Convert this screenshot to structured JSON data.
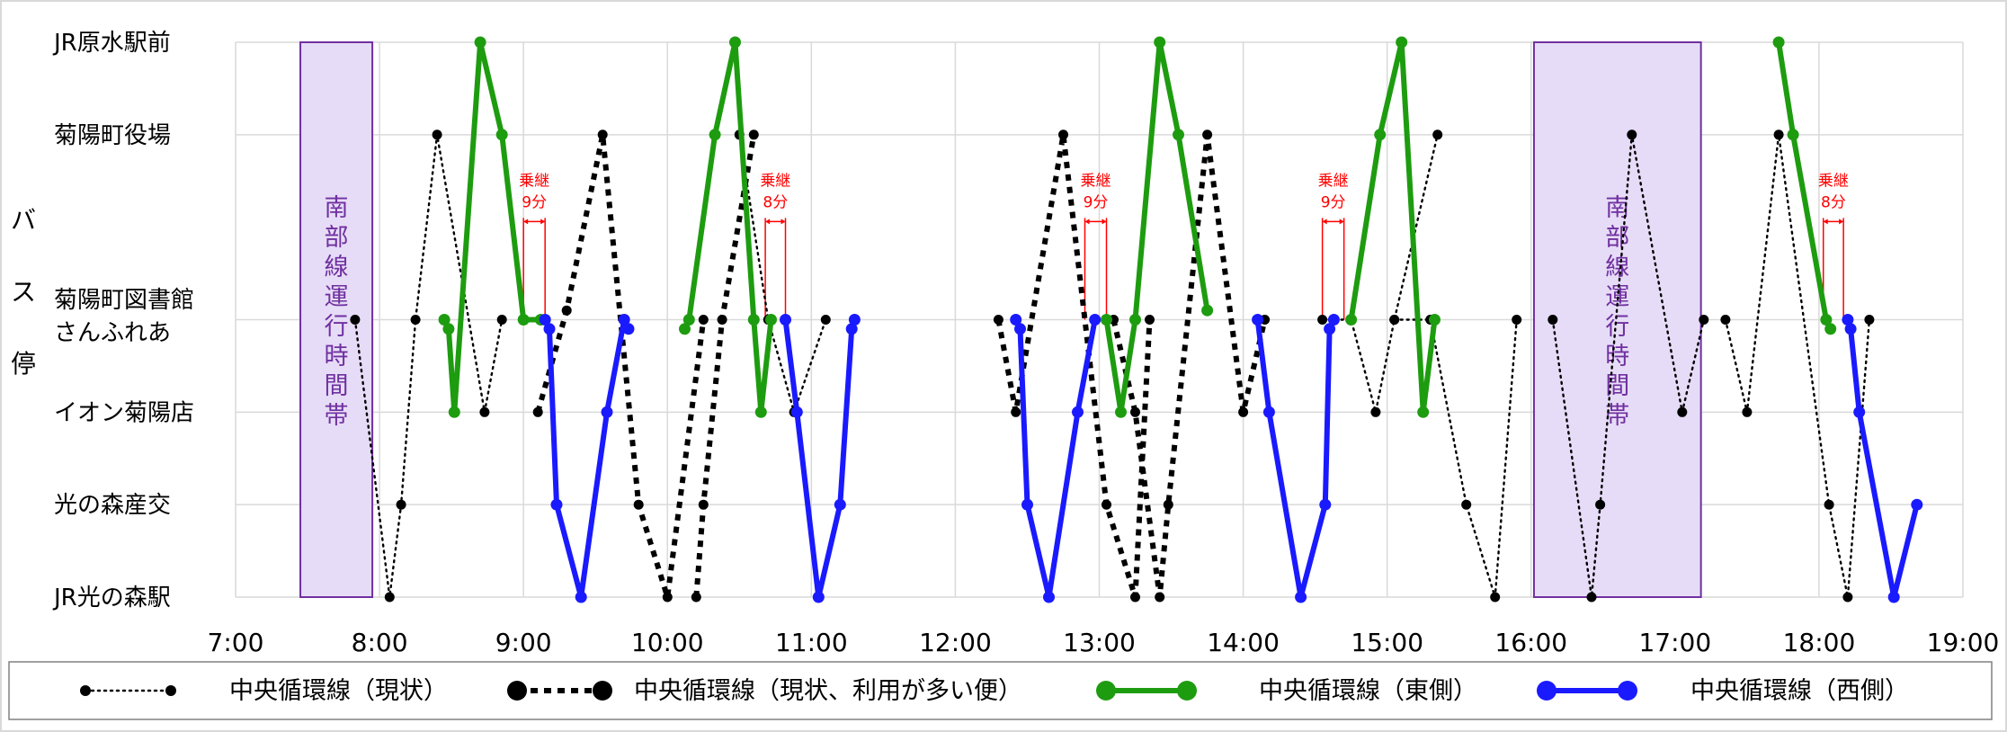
{
  "chart_data": {
    "type": "line",
    "ylabel": "バス停",
    "stops": [
      "JR原水駅前",
      "菊陽町役場",
      "菊陽町図書館",
      "さんふれあ",
      "イオン菊陽店",
      "光の森産交",
      "JR光の森駅"
    ],
    "stop_levels": [
      6,
      5,
      3.1,
      3,
      2,
      1,
      0
    ],
    "xlim": [
      7,
      19
    ],
    "x_ticks": [
      "7:00",
      "8:00",
      "9:00",
      "10:00",
      "11:00",
      "12:00",
      "13:00",
      "14:00",
      "15:00",
      "16:00",
      "17:00",
      "18:00",
      "19:00"
    ],
    "grid": true,
    "bands": [
      {
        "label": "南部線運行時間帯",
        "x_start": 7.45,
        "x_end": 7.95
      },
      {
        "label": "南部線運行時間帯",
        "x_start": 16.02,
        "x_end": 17.18
      }
    ],
    "relays": [
      {
        "line1": "乗継",
        "line2": "9分",
        "x_from": 9.0,
        "x_to": 9.15,
        "level_top": 4.1
      },
      {
        "line1": "乗継",
        "line2": "8分",
        "x_from": 10.68,
        "x_to": 10.82,
        "level_top": 4.1
      },
      {
        "line1": "乗継",
        "line2": "9分",
        "x_from": 12.9,
        "x_to": 13.05,
        "level_top": 4.1
      },
      {
        "line1": "乗継",
        "line2": "9分",
        "x_from": 14.55,
        "x_to": 14.7,
        "level_top": 4.1
      },
      {
        "line1": "乗継",
        "line2": "8分",
        "x_from": 18.03,
        "x_to": 18.17,
        "level_top": 4.1
      }
    ],
    "series": [
      {
        "name": "中央循環線（現状）",
        "color": "#000000",
        "style": "dotted-thin",
        "segments": [
          [
            [
              7.83,
              3
            ],
            [
              8.07,
              0
            ],
            [
              8.15,
              1
            ],
            [
              8.25,
              3
            ],
            [
              8.4,
              5
            ],
            [
              8.73,
              2
            ],
            [
              8.85,
              3
            ]
          ],
          [
            [
              16.15,
              3
            ],
            [
              16.42,
              0
            ],
            [
              16.48,
              1
            ],
            [
              16.7,
              5
            ],
            [
              17.05,
              2
            ],
            [
              17.2,
              3
            ]
          ],
          [
            [
              17.35,
              3
            ],
            [
              17.5,
              2
            ],
            [
              17.72,
              5
            ],
            [
              18.07,
              1
            ],
            [
              18.2,
              0
            ],
            [
              18.35,
              3
            ]
          ],
          [
            [
              14.55,
              3
            ],
            [
              14.75,
              3
            ],
            [
              14.92,
              2
            ],
            [
              15.05,
              3
            ],
            [
              15.35,
              5
            ]
          ],
          [
            [
              15.05,
              3
            ],
            [
              15.3,
              3
            ],
            [
              15.55,
              1
            ],
            [
              15.75,
              0
            ],
            [
              15.9,
              3
            ]
          ],
          [
            [
              10.5,
              5
            ],
            [
              10.7,
              3
            ],
            [
              10.88,
              2
            ],
            [
              11.1,
              3
            ]
          ]
        ]
      },
      {
        "name": "中央循環線（現状、利用が多い便）",
        "color": "#000000",
        "style": "dotted-thick",
        "segments": [
          [
            [
              9.1,
              2
            ],
            [
              9.3,
              3.1
            ],
            [
              9.55,
              5
            ],
            [
              9.8,
              1
            ],
            [
              10.0,
              0
            ],
            [
              10.25,
              3
            ]
          ],
          [
            [
              10.2,
              0
            ],
            [
              10.25,
              1
            ],
            [
              10.38,
              3
            ],
            [
              10.6,
              5
            ]
          ],
          [
            [
              12.3,
              3
            ],
            [
              12.42,
              2
            ],
            [
              12.75,
              5
            ],
            [
              13.05,
              1
            ],
            [
              13.25,
              0
            ],
            [
              13.35,
              3
            ]
          ],
          [
            [
              13.1,
              3
            ],
            [
              13.25,
              2
            ],
            [
              13.42,
              0
            ],
            [
              13.48,
              1
            ],
            [
              13.75,
              5
            ],
            [
              14.0,
              2
            ],
            [
              14.15,
              3
            ]
          ]
        ]
      },
      {
        "name": "中央循環線（東側）",
        "color": "#1e9c10",
        "style": "solid-thick",
        "segments": [
          [
            [
              8.45,
              3
            ],
            [
              8.48,
              2.9
            ],
            [
              8.52,
              2
            ],
            [
              8.7,
              6
            ],
            [
              8.85,
              5
            ],
            [
              9.0,
              3
            ],
            [
              9.12,
              3
            ]
          ],
          [
            [
              10.12,
              2.9
            ],
            [
              10.15,
              3
            ],
            [
              10.33,
              5
            ],
            [
              10.47,
              6
            ],
            [
              10.6,
              3
            ],
            [
              10.65,
              2
            ],
            [
              10.72,
              3
            ]
          ],
          [
            [
              13.05,
              3
            ],
            [
              13.15,
              2
            ],
            [
              13.25,
              3
            ],
            [
              13.42,
              6
            ],
            [
              13.55,
              5
            ],
            [
              13.75,
              3.1
            ]
          ],
          [
            [
              14.75,
              3
            ],
            [
              14.95,
              5
            ],
            [
              15.1,
              6
            ],
            [
              15.25,
              2
            ],
            [
              15.33,
              3
            ]
          ],
          [
            [
              17.72,
              6
            ],
            [
              17.82,
              5
            ],
            [
              18.05,
              3
            ],
            [
              18.08,
              2.9
            ]
          ]
        ]
      },
      {
        "name": "中央循環線（西側）",
        "color": "#1a1aff",
        "style": "solid-thick",
        "segments": [
          [
            [
              9.15,
              3
            ],
            [
              9.18,
              2.9
            ],
            [
              9.23,
              1
            ],
            [
              9.4,
              0
            ],
            [
              9.58,
              2
            ],
            [
              9.7,
              3
            ],
            [
              9.73,
              2.9
            ]
          ],
          [
            [
              10.82,
              3
            ],
            [
              10.9,
              2
            ],
            [
              11.05,
              0
            ],
            [
              11.2,
              1
            ],
            [
              11.28,
              2.9
            ],
            [
              11.3,
              3
            ]
          ],
          [
            [
              12.42,
              3
            ],
            [
              12.45,
              2.9
            ],
            [
              12.5,
              1
            ],
            [
              12.65,
              0
            ],
            [
              12.85,
              2
            ],
            [
              12.97,
              3
            ]
          ],
          [
            [
              14.1,
              3
            ],
            [
              14.18,
              2
            ],
            [
              14.4,
              0
            ],
            [
              14.57,
              1
            ],
            [
              14.6,
              2.9
            ],
            [
              14.63,
              3
            ]
          ],
          [
            [
              18.2,
              3
            ],
            [
              18.22,
              2.9
            ],
            [
              18.28,
              2
            ],
            [
              18.52,
              0
            ],
            [
              18.68,
              1
            ]
          ]
        ]
      }
    ]
  }
}
